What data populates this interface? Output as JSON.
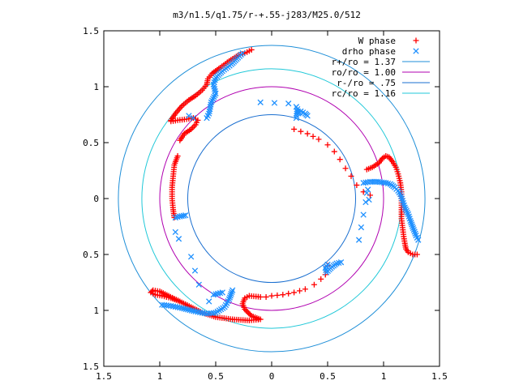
{
  "chart_data": {
    "type": "scatter",
    "title": "m3/n1.5/q1.75/r-+.55-j283/M25.0/512",
    "xlim": [
      -1.5,
      1.5
    ],
    "ylim": [
      -1.5,
      1.5
    ],
    "xticks": [
      -1.5,
      -1,
      -0.5,
      0,
      0.5,
      1,
      1.5
    ],
    "yticks": [
      -1.5,
      -1,
      -0.5,
      0,
      0.5,
      1,
      1.5
    ],
    "xtick_labels": [
      "1.5",
      "1",
      "0.5",
      "0",
      "0.5",
      "1",
      "1.5"
    ],
    "ytick_labels": [
      "1.5",
      "1",
      "0.5",
      "0",
      "0.5",
      "1",
      "1.5"
    ],
    "grid": false,
    "legend_position": "top-right",
    "colors": {
      "w_phase": "#ff0000",
      "drho_phase": "#1e90ff",
      "r_plus": "#1f8fd8",
      "r_o": "#b000b0",
      "r_minus": "#1a6fd0",
      "r_c": "#20c8d8"
    },
    "circles": [
      {
        "name": "r+/ro = 1.37",
        "radius": 1.37
      },
      {
        "name": "ro/ro = 1.00",
        "radius": 1.0
      },
      {
        "name": "r-/ro = .75",
        "radius": 0.75
      },
      {
        "name": "rc/ro = 1.16",
        "radius": 1.16
      }
    ],
    "series": [
      {
        "name": "W phase",
        "marker": "+",
        "segments": [
          [
            [
              0.2,
              0.62
            ],
            [
              0.32,
              0.58
            ],
            [
              0.42,
              0.53
            ],
            [
              0.5,
              0.48
            ],
            [
              0.56,
              0.42
            ],
            [
              0.61,
              0.35
            ],
            [
              0.66,
              0.27
            ],
            [
              0.71,
              0.2
            ],
            [
              0.76,
              0.12
            ],
            [
              0.82,
              0.06
            ],
            [
              0.88,
              0.03
            ]
          ],
          [
            [
              0.85,
              0.26
            ],
            [
              0.9,
              0.28
            ],
            [
              0.96,
              0.32
            ],
            [
              0.99,
              0.36
            ],
            [
              1.02,
              0.38
            ],
            [
              1.05,
              0.37
            ],
            [
              1.08,
              0.33
            ],
            [
              1.11,
              0.28
            ],
            [
              1.13,
              0.22
            ],
            [
              1.15,
              0.14
            ],
            [
              1.16,
              0.06
            ],
            [
              1.16,
              -0.02
            ],
            [
              1.16,
              -0.1
            ],
            [
              1.16,
              -0.18
            ],
            [
              1.17,
              -0.26
            ],
            [
              1.18,
              -0.34
            ],
            [
              1.19,
              -0.4
            ],
            [
              1.2,
              -0.45
            ],
            [
              1.22,
              -0.48
            ],
            [
              1.26,
              -0.5
            ],
            [
              1.3,
              -0.5
            ]
          ],
          [
            [
              0.5,
              -0.6
            ],
            [
              0.48,
              -0.68
            ],
            [
              0.44,
              -0.72
            ],
            [
              0.38,
              -0.77
            ],
            [
              0.3,
              -0.81
            ],
            [
              0.2,
              -0.84
            ],
            [
              0.1,
              -0.86
            ],
            [
              0.0,
              -0.87
            ],
            [
              -0.05,
              -0.88
            ]
          ],
          [
            [
              -0.1,
              -0.88
            ],
            [
              -0.2,
              -0.87
            ],
            [
              -0.24,
              -0.89
            ],
            [
              -0.26,
              -0.94
            ],
            [
              -0.24,
              -0.99
            ],
            [
              -0.18,
              -1.05
            ],
            [
              -0.1,
              -1.08
            ],
            [
              -0.2,
              -1.09
            ],
            [
              -0.35,
              -1.08
            ],
            [
              -0.5,
              -1.06
            ],
            [
              -0.62,
              -1.02
            ],
            [
              -0.72,
              -0.97
            ],
            [
              -0.82,
              -0.92
            ],
            [
              -0.92,
              -0.87
            ],
            [
              -1.0,
              -0.83
            ],
            [
              -1.06,
              -0.82
            ],
            [
              -1.08,
              -0.84
            ],
            [
              -1.04,
              -0.86
            ],
            [
              -0.98,
              -0.87
            ],
            [
              -0.9,
              -0.89
            ],
            [
              -0.82,
              -0.92
            ]
          ],
          [
            [
              -0.9,
              0.7
            ],
            [
              -0.86,
              0.76
            ],
            [
              -0.8,
              0.83
            ],
            [
              -0.74,
              0.88
            ],
            [
              -0.68,
              0.92
            ],
            [
              -0.62,
              0.97
            ],
            [
              -0.58,
              1.02
            ],
            [
              -0.57,
              1.07
            ],
            [
              -0.53,
              1.12
            ],
            [
              -0.46,
              1.17
            ],
            [
              -0.38,
              1.23
            ],
            [
              -0.3,
              1.28
            ],
            [
              -0.24,
              1.3
            ],
            [
              -0.2,
              1.32
            ],
            [
              -0.18,
              1.33
            ]
          ],
          [
            [
              -0.82,
              0.52
            ],
            [
              -0.78,
              0.58
            ],
            [
              -0.72,
              0.62
            ],
            [
              -0.68,
              0.66
            ],
            [
              -0.66,
              0.7
            ],
            [
              -0.7,
              0.72
            ],
            [
              -0.76,
              0.71
            ],
            [
              -0.84,
              0.7
            ],
            [
              -0.9,
              0.69
            ]
          ],
          [
            [
              -0.84,
              0.38
            ],
            [
              -0.87,
              0.3
            ],
            [
              -0.88,
              0.2
            ],
            [
              -0.89,
              0.1
            ],
            [
              -0.89,
              0.0
            ],
            [
              -0.88,
              -0.1
            ],
            [
              -0.87,
              -0.17
            ]
          ]
        ]
      },
      {
        "name": "drho phase",
        "marker": "x",
        "segments": [
          [
            [
              0.22,
              0.72
            ],
            [
              0.23,
              0.8
            ],
            [
              0.24,
              0.76
            ],
            [
              0.26,
              0.78
            ],
            [
              0.28,
              0.77
            ],
            [
              0.3,
              0.76
            ],
            [
              0.32,
              0.74
            ]
          ],
          [
            [
              0.82,
              0.14
            ],
            [
              0.88,
              0.15
            ],
            [
              0.95,
              0.15
            ],
            [
              1.02,
              0.14
            ],
            [
              1.06,
              0.13
            ],
            [
              1.1,
              0.1
            ],
            [
              1.13,
              0.07
            ],
            [
              1.15,
              0.04
            ],
            [
              1.17,
              -0.02
            ],
            [
              1.19,
              -0.08
            ],
            [
              1.22,
              -0.14
            ],
            [
              1.24,
              -0.2
            ],
            [
              1.27,
              -0.28
            ],
            [
              1.29,
              -0.33
            ],
            [
              1.31,
              -0.37
            ]
          ],
          [
            [
              0.85,
              0.05
            ],
            [
              0.87,
              -0.01
            ],
            [
              0.86,
              0.08
            ],
            [
              0.78,
              -0.37
            ]
          ],
          [
            [
              0.5,
              -0.59
            ],
            [
              0.48,
              -0.62
            ],
            [
              0.49,
              -0.66
            ],
            [
              0.54,
              -0.61
            ],
            [
              0.58,
              -0.58
            ],
            [
              0.62,
              -0.57
            ]
          ],
          [
            [
              -0.35,
              -0.82
            ],
            [
              -0.38,
              -0.9
            ],
            [
              -0.42,
              -0.97
            ],
            [
              -0.5,
              -1.02
            ],
            [
              -0.58,
              -1.03
            ],
            [
              -0.68,
              -1.01
            ],
            [
              -0.8,
              -0.98
            ],
            [
              -0.9,
              -0.96
            ],
            [
              -0.98,
              -0.95
            ]
          ],
          [
            [
              -0.44,
              -0.84
            ],
            [
              -0.52,
              -0.86
            ]
          ],
          [
            [
              -0.26,
              1.3
            ],
            [
              -0.3,
              1.26
            ],
            [
              -0.36,
              1.2
            ],
            [
              -0.44,
              1.14
            ],
            [
              -0.5,
              1.08
            ],
            [
              -0.52,
              1.02
            ],
            [
              -0.5,
              0.94
            ],
            [
              -0.54,
              0.86
            ],
            [
              -0.56,
              0.76
            ],
            [
              -0.58,
              0.72
            ]
          ],
          [
            [
              -0.7,
              0.72
            ],
            [
              -0.74,
              0.74
            ]
          ],
          [
            [
              -0.77,
              -0.15
            ],
            [
              -0.82,
              -0.16
            ],
            [
              -0.86,
              -0.17
            ]
          ],
          [
            [
              -0.1,
              0.86
            ],
            [
              0.15,
              0.85
            ],
            [
              0.22,
              0.82
            ]
          ],
          [
            [
              -0.86,
              -0.3
            ],
            [
              -0.83,
              -0.36
            ],
            [
              -0.72,
              -0.52
            ],
            [
              -0.65,
              -0.77
            ],
            [
              -0.56,
              -0.92
            ]
          ]
        ]
      }
    ]
  }
}
